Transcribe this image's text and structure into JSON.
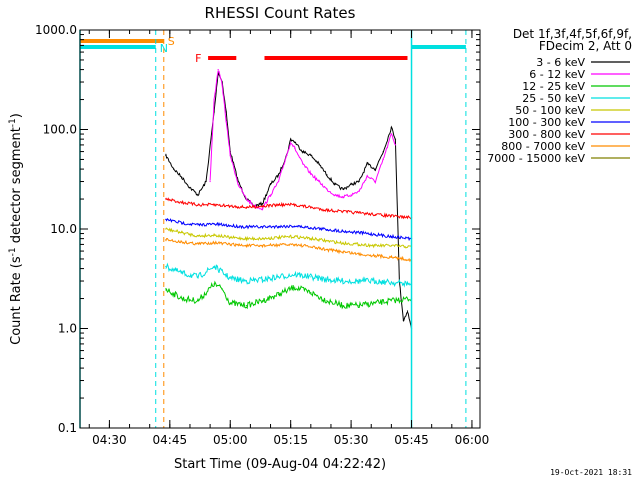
{
  "chart_data": {
    "type": "line",
    "title": "RHESSI Count Rates",
    "xlabel": "Start Time (09-Aug-04 04:22:42)",
    "ylabel": "Count Rate (s",
    "ylabel_sup1": "-1",
    "ylabel_mid": " detector segment",
    "ylabel_sup2": "-1",
    "ylabel_end": ")",
    "y_scale": "log",
    "ylim": [
      0.1,
      1000
    ],
    "xlim": [
      "04:22:42",
      "06:02:00"
    ],
    "x_ticks": [
      "04:30",
      "04:45",
      "05:00",
      "05:15",
      "05:30",
      "05:45",
      "06:00"
    ],
    "y_ticks": [
      "0.1",
      "1.0",
      "10.0",
      "100.0",
      "1000.0"
    ],
    "grid": false,
    "legend_position": "right",
    "legend_header": [
      "Det 1f,3f,4f,5f,6f,9f,",
      "FDecim 2, Att 0"
    ],
    "colors": {
      "axes": "#000000",
      "saa_lines": "#00e0e0",
      "night_lines": "#ff8c00",
      "flare_flag": "#ff0000"
    },
    "series": [
      {
        "name": "3 - 6 keV",
        "color": "#000000",
        "points": [
          [
            "04:44",
            55
          ],
          [
            "04:46",
            40
          ],
          [
            "04:48",
            33
          ],
          [
            "04:50",
            26
          ],
          [
            "04:52",
            22
          ],
          [
            "04:54",
            30
          ],
          [
            "04:56",
            150
          ],
          [
            "04:57",
            380
          ],
          [
            "04:58",
            300
          ],
          [
            "04:59",
            150
          ],
          [
            "05:00",
            60
          ],
          [
            "05:02",
            30
          ],
          [
            "05:04",
            20
          ],
          [
            "05:06",
            17
          ],
          [
            "05:08",
            18
          ],
          [
            "05:10",
            28
          ],
          [
            "05:12",
            35
          ],
          [
            "05:14",
            55
          ],
          [
            "05:15",
            80
          ],
          [
            "05:16",
            75
          ],
          [
            "05:18",
            60
          ],
          [
            "05:20",
            55
          ],
          [
            "05:22",
            45
          ],
          [
            "05:24",
            35
          ],
          [
            "05:26",
            28
          ],
          [
            "05:28",
            25
          ],
          [
            "05:30",
            28
          ],
          [
            "05:32",
            30
          ],
          [
            "05:34",
            45
          ],
          [
            "05:36",
            40
          ],
          [
            "05:38",
            60
          ],
          [
            "05:40",
            105
          ],
          [
            "05:41",
            80
          ],
          [
            "05:42",
            3
          ],
          [
            "05:43",
            1.2
          ],
          [
            "05:44",
            1.5
          ],
          [
            "05:45",
            1
          ]
        ]
      },
      {
        "name": "6 - 12 keV",
        "color": "#ff00ff",
        "points": [
          [
            "04:55",
            30
          ],
          [
            "04:56",
            200
          ],
          [
            "04:57",
            400
          ],
          [
            "04:58",
            280
          ],
          [
            "04:59",
            120
          ],
          [
            "05:00",
            55
          ],
          [
            "05:02",
            28
          ],
          [
            "05:04",
            20
          ],
          [
            "05:06",
            17
          ],
          [
            "05:08",
            16
          ],
          [
            "05:10",
            22
          ],
          [
            "05:12",
            30
          ],
          [
            "05:14",
            55
          ],
          [
            "05:15",
            75
          ],
          [
            "05:16",
            65
          ],
          [
            "05:18",
            45
          ],
          [
            "05:20",
            36
          ],
          [
            "05:22",
            30
          ],
          [
            "05:24",
            25
          ],
          [
            "05:26",
            22
          ],
          [
            "05:28",
            21
          ],
          [
            "05:30",
            22
          ],
          [
            "05:32",
            24
          ],
          [
            "05:34",
            34
          ],
          [
            "05:36",
            30
          ],
          [
            "05:38",
            50
          ],
          [
            "05:40",
            90
          ],
          [
            "05:41",
            70
          ]
        ]
      },
      {
        "name": "12 - 25 keV",
        "color": "#00c800",
        "points": [
          [
            "04:44",
            2.5
          ],
          [
            "04:48",
            2.0
          ],
          [
            "04:52",
            1.9
          ],
          [
            "04:56",
            2.8
          ],
          [
            "04:58",
            2.5
          ],
          [
            "05:00",
            1.8
          ],
          [
            "05:04",
            1.7
          ],
          [
            "05:08",
            1.9
          ],
          [
            "05:12",
            2.2
          ],
          [
            "05:16",
            2.6
          ],
          [
            "05:20",
            2.3
          ],
          [
            "05:24",
            1.9
          ],
          [
            "05:28",
            1.7
          ],
          [
            "05:32",
            1.7
          ],
          [
            "05:36",
            1.8
          ],
          [
            "05:40",
            1.9
          ],
          [
            "05:45",
            2.0
          ]
        ]
      },
      {
        "name": "25 - 50 keV",
        "color": "#00e0e0",
        "points": [
          [
            "04:44",
            4.2
          ],
          [
            "04:48",
            3.6
          ],
          [
            "04:52",
            3.3
          ],
          [
            "04:56",
            4.2
          ],
          [
            "05:00",
            3.2
          ],
          [
            "05:04",
            3.0
          ],
          [
            "05:08",
            3.1
          ],
          [
            "05:12",
            3.3
          ],
          [
            "05:16",
            3.5
          ],
          [
            "05:20",
            3.3
          ],
          [
            "05:24",
            3.1
          ],
          [
            "05:28",
            3.0
          ],
          [
            "05:32",
            3.0
          ],
          [
            "05:36",
            3.0
          ],
          [
            "05:40",
            2.9
          ],
          [
            "05:45",
            2.8
          ]
        ]
      },
      {
        "name": "50 - 100 keV",
        "color": "#c8c800",
        "points": [
          [
            "04:44",
            10
          ],
          [
            "04:48",
            9.2
          ],
          [
            "04:52",
            8.5
          ],
          [
            "04:56",
            8.7
          ],
          [
            "05:00",
            8.2
          ],
          [
            "05:04",
            8.0
          ],
          [
            "05:08",
            8.0
          ],
          [
            "05:12",
            8.2
          ],
          [
            "05:16",
            8.4
          ],
          [
            "05:20",
            8.0
          ],
          [
            "05:24",
            7.6
          ],
          [
            "05:28",
            7.2
          ],
          [
            "05:32",
            7.0
          ],
          [
            "05:36",
            6.8
          ],
          [
            "05:40",
            6.8
          ],
          [
            "05:45",
            6.6
          ]
        ]
      },
      {
        "name": "100 - 300 keV",
        "color": "#0000ff",
        "points": [
          [
            "04:44",
            12.5
          ],
          [
            "04:48",
            11.5
          ],
          [
            "04:52",
            11.0
          ],
          [
            "04:56",
            11.2
          ],
          [
            "05:00",
            10.8
          ],
          [
            "05:04",
            10.5
          ],
          [
            "05:08",
            10.5
          ],
          [
            "05:12",
            10.6
          ],
          [
            "05:16",
            10.7
          ],
          [
            "05:20",
            10.3
          ],
          [
            "05:24",
            9.9
          ],
          [
            "05:28",
            9.5
          ],
          [
            "05:32",
            9.2
          ],
          [
            "05:36",
            8.8
          ],
          [
            "05:40",
            8.4
          ],
          [
            "05:45",
            8.0
          ]
        ]
      },
      {
        "name": "300 - 800 keV",
        "color": "#ff0000",
        "points": [
          [
            "04:44",
            20
          ],
          [
            "04:48",
            18.5
          ],
          [
            "04:52",
            17.5
          ],
          [
            "04:56",
            17.5
          ],
          [
            "05:00",
            17
          ],
          [
            "05:04",
            16.5
          ],
          [
            "05:08",
            17
          ],
          [
            "05:12",
            17.5
          ],
          [
            "05:16",
            17.5
          ],
          [
            "05:20",
            16.5
          ],
          [
            "05:24",
            15.5
          ],
          [
            "05:28",
            15
          ],
          [
            "05:32",
            14.5
          ],
          [
            "05:36",
            14
          ],
          [
            "05:40",
            13.5
          ],
          [
            "05:45",
            13
          ]
        ]
      },
      {
        "name": "800 - 7000 keV",
        "color": "#ff8c00",
        "points": [
          [
            "04:44",
            7.8
          ],
          [
            "04:48",
            7.4
          ],
          [
            "04:52",
            7.1
          ],
          [
            "04:56",
            7.3
          ],
          [
            "05:00",
            7.0
          ],
          [
            "05:04",
            6.8
          ],
          [
            "05:08",
            6.8
          ],
          [
            "05:12",
            6.9
          ],
          [
            "05:16",
            7.0
          ],
          [
            "05:20",
            6.6
          ],
          [
            "05:24",
            6.2
          ],
          [
            "05:28",
            5.9
          ],
          [
            "05:32",
            5.6
          ],
          [
            "05:36",
            5.4
          ],
          [
            "05:40",
            5.2
          ],
          [
            "05:45",
            4.9
          ]
        ]
      },
      {
        "name": "7000 - 15000 keV",
        "color": "#808000",
        "points": []
      }
    ],
    "annotations": {
      "saa_label": "S",
      "night_label": "N",
      "flare_label": "F",
      "saa_bars": [
        [
          "04:22:42",
          "04:43:30"
        ]
      ],
      "night_bars_left": [
        [
          "04:22:42",
          "04:41:30"
        ]
      ],
      "night_bars_right": [
        [
          "05:45:00",
          "05:58:30"
        ]
      ],
      "flare_bars": [
        [
          "04:54:30",
          "05:01:30"
        ],
        [
          "05:08:30",
          "05:44:00"
        ]
      ],
      "cyan_solid_lines": [
        "04:22:42",
        "05:45:00"
      ],
      "cyan_dashed_lines": [
        "04:41:30",
        "05:58:30"
      ],
      "orange_dashed_lines": [
        "04:43:30"
      ]
    }
  },
  "timestamp": "19-Oct-2021 18:31"
}
